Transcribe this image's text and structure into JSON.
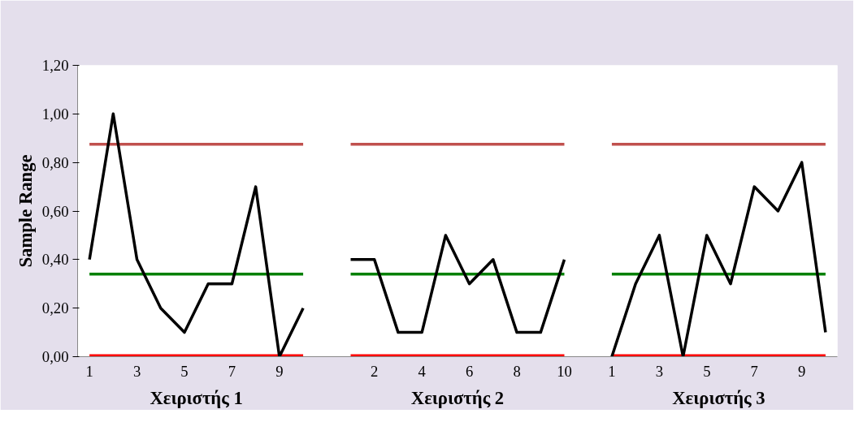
{
  "chart_data": {
    "type": "line",
    "ylabel": "Sample Range",
    "categories": [
      "1",
      null,
      "3",
      null,
      "5",
      null,
      "7",
      null,
      "9",
      null,
      null,
      null,
      "2",
      null,
      "4",
      null,
      "6",
      null,
      "8",
      null,
      "10",
      null,
      "1",
      null,
      "3",
      null,
      "5",
      null,
      "7",
      null,
      "9",
      null
    ],
    "series": [
      {
        "color": "#c0504d",
        "values": [
          0.875,
          0.875,
          0.875,
          0.875,
          0.875,
          0.875,
          0.875,
          0.875,
          0.875,
          0.875,
          null,
          0.875,
          0.875,
          0.875,
          0.875,
          0.875,
          0.875,
          0.875,
          0.875,
          0.875,
          0.875,
          null,
          0.875,
          0.875,
          0.875,
          0.875,
          0.875,
          0.875,
          0.875,
          0.875,
          0.875,
          0.875
        ]
      },
      {
        "color": "#008000",
        "values": [
          0.34,
          0.34,
          0.34,
          0.34,
          0.34,
          0.34,
          0.34,
          0.34,
          0.34,
          0.34,
          null,
          0.34,
          0.34,
          0.34,
          0.34,
          0.34,
          0.34,
          0.34,
          0.34,
          0.34,
          0.34,
          null,
          0.34,
          0.34,
          0.34,
          0.34,
          0.34,
          0.34,
          0.34,
          0.34,
          0.34,
          0.34
        ]
      },
      {
        "color": "#ff0000",
        "values": [
          0,
          0,
          0,
          0,
          0,
          0,
          0,
          0,
          0,
          0,
          null,
          0,
          0,
          0,
          0,
          0,
          0,
          0,
          0,
          0,
          0,
          null,
          0,
          0,
          0,
          0,
          0,
          0,
          0,
          0,
          0,
          0
        ]
      },
      {
        "color": "#000000",
        "values": [
          0.4,
          1.0,
          0.4,
          0.2,
          0.1,
          0.3,
          0.3,
          0.7,
          0.0,
          0.2,
          null,
          0.4,
          0.4,
          0.1,
          0.1,
          0.5,
          0.3,
          0.4,
          0.1,
          0.1,
          0.4,
          null,
          0.0,
          0.3,
          0.5,
          0.0,
          0.5,
          0.3,
          0.7,
          0.6,
          0.8,
          0.1
        ]
      }
    ],
    "ylim": [
      0,
      1.2
    ],
    "yticks": [
      {
        "value": 0,
        "label": "0,00"
      },
      {
        "value": 0.2,
        "label": "0,20"
      },
      {
        "value": 0.4,
        "label": "0,40"
      },
      {
        "value": 0.6,
        "label": "0,60"
      },
      {
        "value": 0.8,
        "label": "0,80"
      },
      {
        "value": 1.0,
        "label": "1,00"
      },
      {
        "value": 1.2,
        "label": "1,20"
      }
    ],
    "annotations": [
      "Χειριστής 1",
      "Χειριστής 2",
      "Χειριστής 3"
    ],
    "grid": false,
    "marker": "none",
    "line_style": "solid"
  }
}
